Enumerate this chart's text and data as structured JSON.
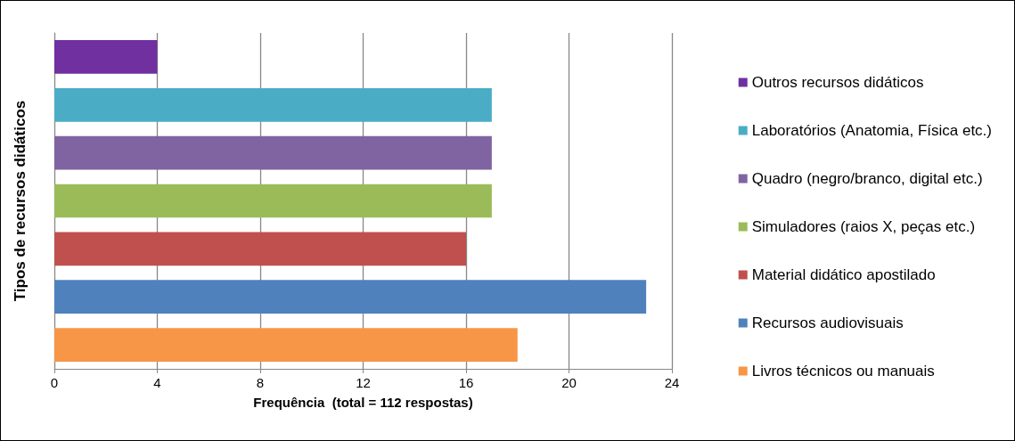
{
  "chart_data": {
    "type": "bar",
    "orientation": "horizontal",
    "xlabel": "Frequência  (total = 112 respostas)",
    "ylabel": "Tipos de recursos didáticos",
    "categories": [
      null,
      null,
      null,
      null,
      null,
      null,
      null
    ],
    "series": [
      {
        "name": "Outros recursos didáticos",
        "color": "#7030a0",
        "values": [
          4,
          null,
          null,
          null,
          null,
          null,
          null
        ]
      },
      {
        "name": "Laboratórios (Anatomia, Física etc.)",
        "color": "#4bacc6",
        "values": [
          null,
          17,
          null,
          null,
          null,
          null,
          null
        ]
      },
      {
        "name": "Quadro (negro/branco, digital etc.)",
        "color": "#8064a2",
        "values": [
          null,
          null,
          17,
          null,
          null,
          null,
          null
        ]
      },
      {
        "name": "Simuladores (raios X, peças etc.)",
        "color": "#9bbb59",
        "values": [
          null,
          null,
          null,
          17,
          null,
          null,
          null
        ]
      },
      {
        "name": "Material didático apostilado",
        "color": "#c0504d",
        "values": [
          null,
          null,
          null,
          null,
          16,
          null,
          null
        ]
      },
      {
        "name": "Recursos audiovisuais",
        "color": "#4f81bd",
        "values": [
          null,
          null,
          null,
          null,
          null,
          23,
          null
        ]
      },
      {
        "name": "Livros técnicos ou manuais",
        "color": "#f79646",
        "values": [
          null,
          null,
          null,
          null,
          null,
          null,
          18
        ]
      }
    ],
    "xlim": [
      0,
      24
    ],
    "xticks": [
      0,
      4,
      8,
      12,
      16,
      20,
      24
    ],
    "grid": "x",
    "legend": "right"
  }
}
